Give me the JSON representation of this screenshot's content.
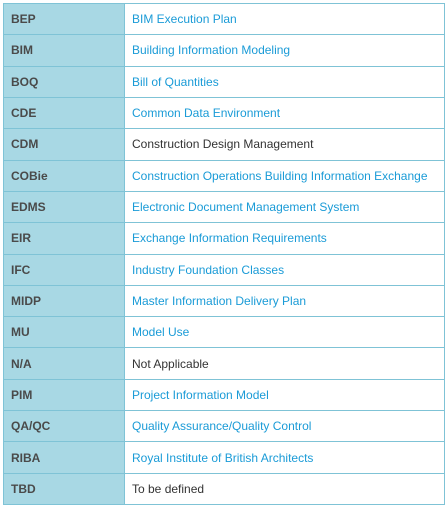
{
  "glossary": {
    "rows": [
      {
        "abbr": "BEP",
        "term": "BIM Execution Plan",
        "link": true
      },
      {
        "abbr": "BIM",
        "term": "Building Information Modeling",
        "link": true
      },
      {
        "abbr": "BOQ",
        "term": "Bill of Quantities",
        "link": true
      },
      {
        "abbr": "CDE",
        "term": "Common Data Environment",
        "link": true
      },
      {
        "abbr": "CDM",
        "term": "Construction Design Management",
        "link": false
      },
      {
        "abbr": "COBie",
        "term": "Construction Operations Building Information Exchange",
        "link": true
      },
      {
        "abbr": "EDMS",
        "term": "Electronic Document Management System",
        "link": true
      },
      {
        "abbr": "EIR",
        "term": "Exchange Information Requirements",
        "link": true
      },
      {
        "abbr": "IFC",
        "term": "Industry Foundation Classes",
        "link": true
      },
      {
        "abbr": "MIDP",
        "term": "Master Information Delivery Plan",
        "link": true
      },
      {
        "abbr": "MU",
        "term": "Model Use",
        "link": true
      },
      {
        "abbr": "N/A",
        "term": "Not Applicable",
        "link": false
      },
      {
        "abbr": "PIM",
        "term": "Project Information Model",
        "link": true
      },
      {
        "abbr": "QA/QC",
        "term": "Quality Assurance/Quality Control",
        "link": true
      },
      {
        "abbr": "RIBA",
        "term": "Royal Institute of British Architects",
        "link": true
      },
      {
        "abbr": "TBD",
        "term": "To be defined",
        "link": false
      }
    ]
  },
  "colors": {
    "abbr_background": "#a8d8e4",
    "border": "#7fc3d6",
    "link_text": "#1a9bd7",
    "plain_text": "#333333"
  }
}
